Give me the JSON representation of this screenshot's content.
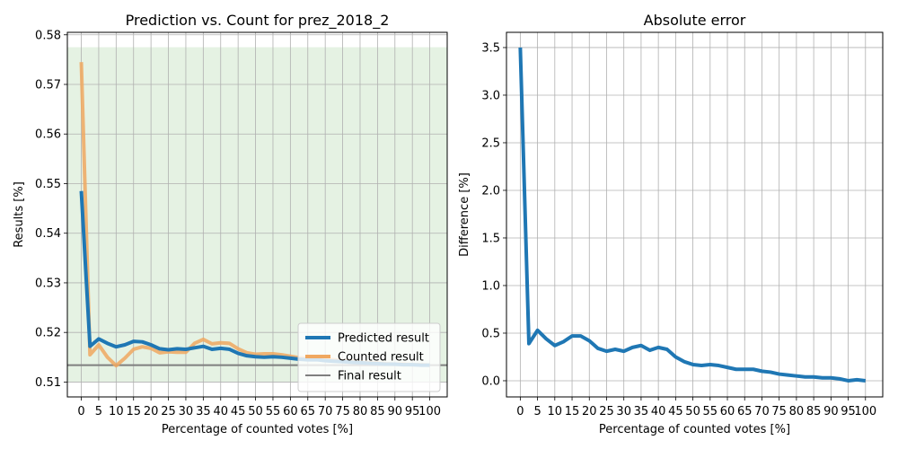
{
  "chart_data": [
    {
      "type": "line",
      "title": "Prediction vs. Count for prez_2018_2",
      "xlabel": "Percentage of counted votes [%]",
      "ylabel": "Results [%]",
      "xlim": [
        -4,
        105
      ],
      "ylim": [
        0.507,
        0.5805
      ],
      "xticks": [
        0,
        5,
        10,
        15,
        20,
        25,
        30,
        35,
        40,
        45,
        50,
        55,
        60,
        65,
        70,
        75,
        80,
        85,
        90,
        95,
        100
      ],
      "yticks": [
        0.51,
        0.52,
        0.53,
        0.54,
        0.55,
        0.56,
        0.57,
        0.58
      ],
      "grid": true,
      "legend": "bottom-right",
      "band": {
        "x": [
          -4,
          105
        ],
        "y": [
          0.51,
          0.5775
        ],
        "color": "#e5f2e3"
      },
      "x": [
        0,
        2.5,
        5,
        7.5,
        10,
        12.5,
        15,
        17.5,
        20,
        22.5,
        25,
        27.5,
        30,
        32.5,
        35,
        37.5,
        40,
        42.5,
        45,
        47.5,
        50,
        52.5,
        55,
        57.5,
        60,
        62.5,
        65,
        67.5,
        70,
        72.5,
        75,
        77.5,
        80,
        82.5,
        85,
        87.5,
        90,
        92.5,
        95,
        97.5,
        100
      ],
      "series": [
        {
          "name": "Predicted result",
          "color": "#1f77b4",
          "values": [
            0.5485,
            0.5172,
            0.5187,
            0.5178,
            0.5171,
            0.5175,
            0.5182,
            0.5181,
            0.5175,
            0.5167,
            0.5165,
            0.5167,
            0.5166,
            0.5169,
            0.5172,
            0.5166,
            0.5168,
            0.5166,
            0.5158,
            0.5153,
            0.5151,
            0.515,
            0.5151,
            0.515,
            0.5148,
            0.5146,
            0.5145,
            0.5145,
            0.5143,
            0.5142,
            0.5141,
            0.514,
            0.5139,
            0.5138,
            0.5137,
            0.5136,
            0.5136,
            0.5135,
            0.5135,
            0.5134,
            0.5134
          ]
        },
        {
          "name": "Counted result",
          "color": "#f0a860",
          "values": [
            0.5745,
            0.5155,
            0.5175,
            0.515,
            0.5133,
            0.5148,
            0.5166,
            0.5171,
            0.5168,
            0.5159,
            0.5161,
            0.516,
            0.516,
            0.5178,
            0.5186,
            0.5177,
            0.5179,
            0.5178,
            0.5167,
            0.5159,
            0.5156,
            0.5157,
            0.5157,
            0.5155,
            0.5152,
            0.5149,
            0.5148,
            0.5147,
            0.5146,
            0.5145,
            0.5143,
            0.5142,
            0.514,
            0.5139,
            0.5138,
            0.5137,
            0.5136,
            0.5136,
            0.5135,
            0.5135,
            0.5134
          ]
        },
        {
          "name": "Final result",
          "color": "#7f7f7f",
          "constant": 0.5134
        }
      ]
    },
    {
      "type": "line",
      "title": "Absolute error",
      "xlabel": "Percentage of counted votes [%]",
      "ylabel": "Difference [%]",
      "xlim": [
        -4,
        105
      ],
      "ylim": [
        -0.17,
        3.66
      ],
      "xticks": [
        0,
        5,
        10,
        15,
        20,
        25,
        30,
        35,
        40,
        45,
        50,
        55,
        60,
        65,
        70,
        75,
        80,
        85,
        90,
        95,
        100
      ],
      "yticks": [
        0.0,
        0.5,
        1.0,
        1.5,
        2.0,
        2.5,
        3.0,
        3.5
      ],
      "grid": true,
      "x": [
        0,
        2.5,
        5,
        7.5,
        10,
        12.5,
        15,
        17.5,
        20,
        22.5,
        25,
        27.5,
        30,
        32.5,
        35,
        37.5,
        40,
        42.5,
        45,
        47.5,
        50,
        52.5,
        55,
        57.5,
        60,
        62.5,
        65,
        67.5,
        70,
        72.5,
        75,
        77.5,
        80,
        82.5,
        85,
        87.5,
        90,
        92.5,
        95,
        97.5,
        100
      ],
      "series": [
        {
          "name": "",
          "color": "#1f77b4",
          "values": [
            3.5,
            0.39,
            0.53,
            0.44,
            0.37,
            0.41,
            0.47,
            0.47,
            0.42,
            0.34,
            0.31,
            0.33,
            0.31,
            0.35,
            0.37,
            0.32,
            0.35,
            0.33,
            0.25,
            0.2,
            0.17,
            0.16,
            0.17,
            0.16,
            0.14,
            0.12,
            0.12,
            0.12,
            0.1,
            0.09,
            0.07,
            0.06,
            0.05,
            0.04,
            0.04,
            0.03,
            0.03,
            0.02,
            0.0,
            0.01,
            0.0
          ]
        }
      ]
    }
  ]
}
